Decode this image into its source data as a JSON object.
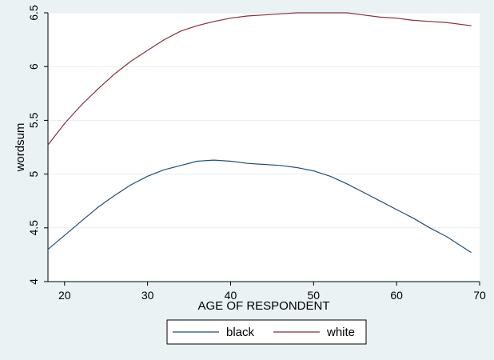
{
  "chart_data": {
    "type": "line",
    "title": "",
    "xlabel": "AGE OF RESPONDENT",
    "ylabel": "wordsum",
    "xlim": [
      18,
      70
    ],
    "ylim": [
      4,
      6.5
    ],
    "xticks": [
      "20",
      "30",
      "40",
      "50",
      "60",
      "70"
    ],
    "yticks": [
      "4",
      "4.5",
      "5",
      "5.5",
      "6",
      "6.5"
    ],
    "grid": true,
    "legend": "bottom",
    "series": [
      {
        "name": "black",
        "color": "#1f4e79",
        "x": [
          18,
          20,
          22,
          24,
          26,
          28,
          30,
          32,
          34,
          36,
          38,
          40,
          42,
          44,
          46,
          48,
          50,
          52,
          54,
          56,
          58,
          60,
          62,
          64,
          66,
          68,
          69
        ],
        "y": [
          4.3,
          4.43,
          4.56,
          4.69,
          4.8,
          4.9,
          4.98,
          5.04,
          5.08,
          5.12,
          5.13,
          5.12,
          5.1,
          5.09,
          5.08,
          5.06,
          5.03,
          4.98,
          4.91,
          4.83,
          4.75,
          4.67,
          4.59,
          4.5,
          4.42,
          4.32,
          4.27
        ]
      },
      {
        "name": "white",
        "color": "#8b2c3a",
        "x": [
          18,
          20,
          22,
          24,
          26,
          28,
          30,
          32,
          34,
          36,
          38,
          40,
          42,
          44,
          46,
          48,
          50,
          52,
          54,
          56,
          58,
          60,
          62,
          64,
          66,
          68,
          69
        ],
        "y": [
          5.27,
          5.47,
          5.64,
          5.79,
          5.93,
          6.05,
          6.15,
          6.25,
          6.33,
          6.38,
          6.42,
          6.45,
          6.47,
          6.48,
          6.49,
          6.5,
          6.5,
          6.5,
          6.5,
          6.48,
          6.46,
          6.45,
          6.43,
          6.42,
          6.41,
          6.39,
          6.38
        ]
      }
    ]
  }
}
